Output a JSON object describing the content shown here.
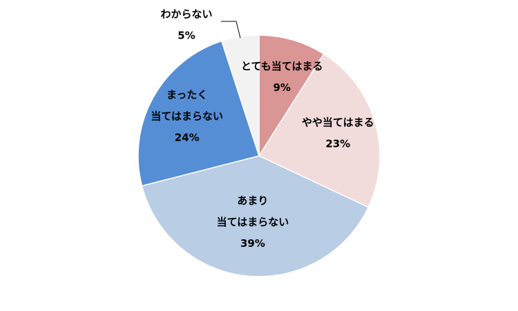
{
  "chart_data": {
    "type": "pie",
    "categories": [
      [
        "とても当てはまる"
      ],
      [
        "やや当てはまる"
      ],
      [
        "あまり",
        "当てはまらない"
      ],
      [
        "まったく",
        "当てはまらない"
      ],
      [
        "わからない"
      ]
    ],
    "values": [
      9,
      23,
      39,
      24,
      5
    ],
    "value_labels": [
      "9%",
      "23%",
      "39%",
      "24%",
      "5%"
    ],
    "colors": [
      "#d99694",
      "#f2dcdb",
      "#b9cde5",
      "#558ed5",
      "#f2f2f2"
    ]
  }
}
